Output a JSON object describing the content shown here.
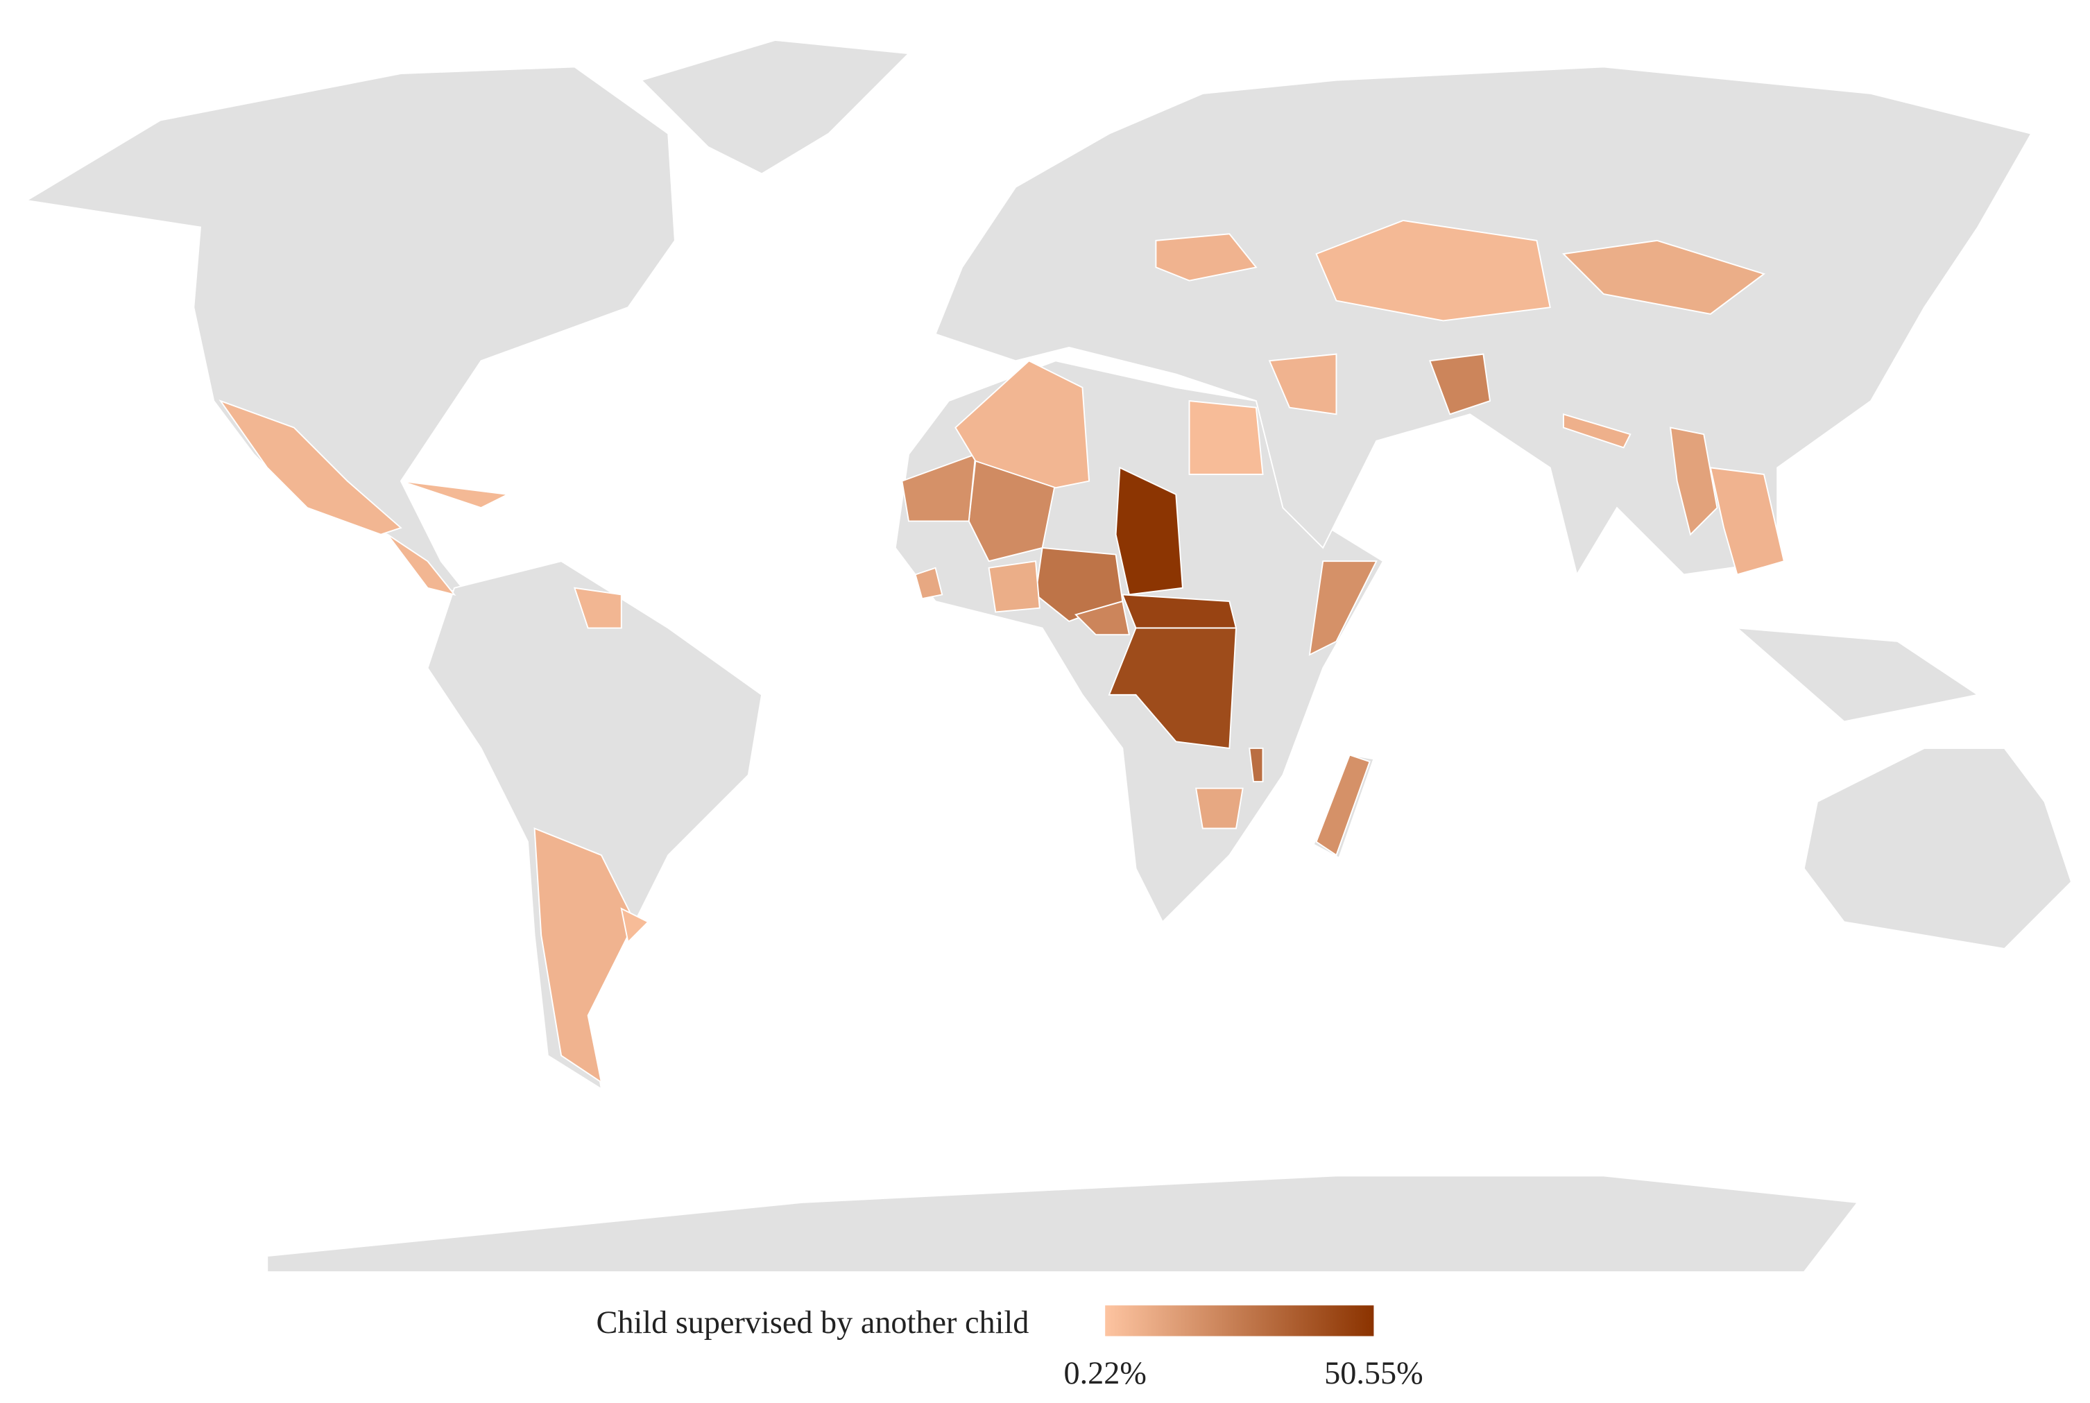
{
  "chart_data": {
    "type": "choropleth",
    "legend_title": "Child supervised by another child",
    "color_range": [
      "#fdc4a1",
      "#8b3300"
    ],
    "scale_lim": [
      0.22,
      50.55
    ],
    "scale_ticks": [
      {
        "value": 0.22,
        "label": "0.22%"
      },
      {
        "value": 50.55,
        "label": "50.55%"
      }
    ],
    "values": [
      50,
      45,
      42,
      28,
      22,
      20,
      18,
      5,
      3,
      5,
      5,
      4,
      6,
      3,
      5,
      8,
      10,
      18,
      18,
      30,
      10,
      6,
      6,
      22,
      4,
      8,
      12,
      6,
      7
    ]
  }
}
